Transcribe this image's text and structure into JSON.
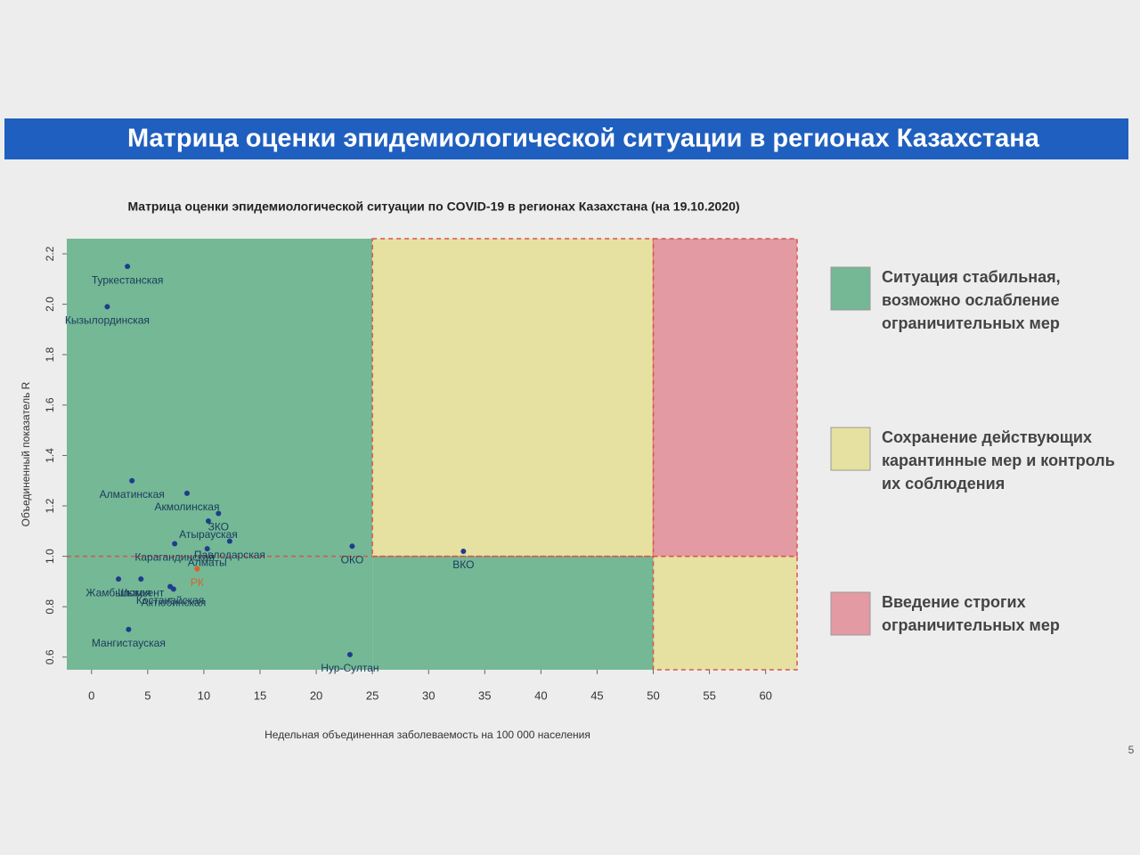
{
  "header": {
    "title": "Матрица оценки эпидемиологической ситуации в регионах Казахстана"
  },
  "chart_data": {
    "type": "scatter",
    "title": "Матрица оценки эпидемиологической ситуации по COVID-19 в регионах Казахстана (на 19.10.2020)",
    "x_label": "Недельная объединенная заболеваемость на 100 000 населения",
    "y_label": "Объединенный показатель R",
    "point_labels": [
      "Туркестанская",
      "Кызылординская",
      "Алматинская",
      "Акмолинская",
      "ЗКО",
      "Атырауская",
      "Карагандинская",
      "Павлодарская",
      "Алматы",
      "ОКО",
      "ВКО",
      "РК",
      "Жамбылская",
      "Шымкент",
      "Костанайская",
      "Актюбинская",
      "Мангистауская",
      "Нур-Султан"
    ],
    "x": [
      3.2,
      1.4,
      3.6,
      8.5,
      11.3,
      10.4,
      7.4,
      12.3,
      10.3,
      23.2,
      33.1,
      9.4,
      2.4,
      4.4,
      7.0,
      7.3,
      3.3,
      23.0
    ],
    "values": [
      2.15,
      1.99,
      1.3,
      1.25,
      1.17,
      1.14,
      1.05,
      1.06,
      1.03,
      1.04,
      1.02,
      0.95,
      0.91,
      0.91,
      0.88,
      0.87,
      0.71,
      0.61
    ],
    "point_colors": [
      "#1f3c8c",
      "#1f3c8c",
      "#1f3c8c",
      "#1f3c8c",
      "#1f3c8c",
      "#1f3c8c",
      "#1f3c8c",
      "#1f3c8c",
      "#1f3c8c",
      "#1f3c8c",
      "#1f3c8c",
      "#d9622b",
      "#1f3c8c",
      "#1f3c8c",
      "#1f3c8c",
      "#1f3c8c",
      "#1f3c8c",
      "#1f3c8c"
    ],
    "xlim": [
      -2.2,
      62.8
    ],
    "ylim": [
      0.55,
      2.26
    ],
    "xticks": [
      0,
      5,
      10,
      15,
      20,
      25,
      30,
      35,
      40,
      45,
      50,
      55,
      60
    ],
    "yticks": [
      {
        "value": 0.6,
        "label": "0.6"
      },
      {
        "value": 0.8,
        "label": "0.8"
      },
      {
        "value": 1.0,
        "label": "1.0"
      },
      {
        "value": 1.2,
        "label": "1.2"
      },
      {
        "value": 1.4,
        "label": "1.4"
      },
      {
        "value": 1.6,
        "label": "1.6"
      },
      {
        "value": 1.8,
        "label": "1.8"
      },
      {
        "value": 2.0,
        "label": "2.0"
      },
      {
        "value": 2.2,
        "label": "2.2"
      }
    ],
    "threshold_y": 1,
    "regions": [
      {
        "name": "Ситуация стабильная, возможно ослабление ограничительных мер",
        "color": "#74b895",
        "areas": [
          [
            -2.2,
            25,
            0.55,
            2.26
          ],
          [
            25,
            50,
            0.55,
            1
          ]
        ]
      },
      {
        "name": "Сохранение действующих карантинные мер и контроль их соблюдения",
        "color": "#e6e1a0",
        "border": "#d9534f",
        "areas": [
          [
            25,
            50,
            1,
            2.26
          ],
          [
            50,
            62.8,
            0.55,
            1
          ]
        ]
      },
      {
        "name": "Введение строгих ограничительных мер",
        "color": "#e39aa2",
        "border": "#d9534f",
        "areas": [
          [
            50,
            62.8,
            1,
            2.26
          ]
        ]
      }
    ]
  },
  "page_number": "5"
}
